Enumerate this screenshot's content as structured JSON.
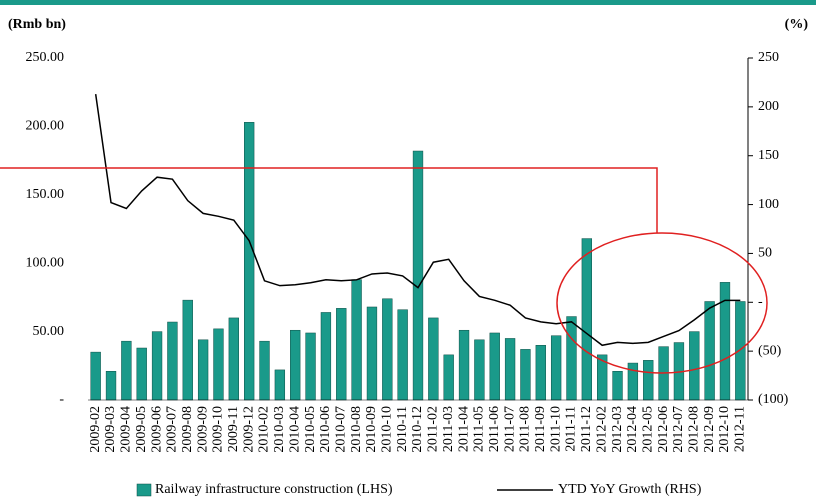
{
  "chart_data": {
    "type": "bar_line",
    "y_label": "(Rmb bn)",
    "y2_label": "(%)",
    "categories": [
      "2009-02",
      "2009-03",
      "2009-04",
      "2009-05",
      "2009-06",
      "2009-07",
      "2009-08",
      "2009-09",
      "2009-10",
      "2009-11",
      "2009-12",
      "2010-02",
      "2010-03",
      "2010-04",
      "2010-05",
      "2010-06",
      "2010-07",
      "2010-08",
      "2010-09",
      "2010-10",
      "2010-11",
      "2010-12",
      "2011-02",
      "2011-03",
      "2011-04",
      "2011-05",
      "2011-06",
      "2011-07",
      "2011-08",
      "2011-09",
      "2011-10",
      "2011-11",
      "2011-12",
      "2012-02",
      "2012-03",
      "2012-04",
      "2012-05",
      "2012-06",
      "2012-07",
      "2012-08",
      "2012-09",
      "2012-10",
      "2012-11"
    ],
    "series": [
      {
        "name": "Railway infrastructure construction (LHS)",
        "color": "#1a9a8a",
        "kind": "bar",
        "values": [
          35,
          21,
          43,
          38,
          50,
          57,
          73,
          44,
          52,
          60,
          203,
          43,
          22,
          51,
          49,
          64,
          67,
          88,
          68,
          74,
          66,
          182,
          60,
          33,
          51,
          44,
          49,
          45,
          37,
          40,
          47,
          61,
          118,
          33,
          21,
          27,
          29,
          39,
          42,
          50,
          72,
          86,
          72
        ]
      },
      {
        "name": "YTD YoY Growth (RHS)",
        "color": "#000000",
        "kind": "line",
        "axis": "y2",
        "values": [
          213,
          102,
          96,
          114,
          128,
          126,
          104,
          91,
          88,
          84,
          63,
          22,
          17,
          18,
          20,
          23,
          22,
          23,
          29,
          30,
          27,
          15,
          41,
          44,
          22,
          6,
          2,
          -3,
          -16,
          -20,
          -22,
          -20,
          -32,
          -44,
          -41,
          -42,
          -41,
          -35,
          -29,
          -18,
          -6,
          2,
          2
        ]
      }
    ],
    "ylim": [
      0,
      250
    ],
    "yticks": [
      {
        "value": 0,
        "label": "-"
      },
      {
        "value": 50,
        "label": "50.00"
      },
      {
        "value": 100,
        "label": "100.00"
      },
      {
        "value": 150,
        "label": "150.00"
      },
      {
        "value": 200,
        "label": "200.00"
      },
      {
        "value": 250,
        "label": "250.00"
      }
    ],
    "y2lim": [
      -100,
      250
    ],
    "y2ticks": [
      {
        "value": -100,
        "label": "(100)"
      },
      {
        "value": -50,
        "label": "(50)"
      },
      {
        "value": 0,
        "label": "-"
      },
      50,
      100,
      150,
      200,
      250
    ],
    "legend": "bottom"
  }
}
